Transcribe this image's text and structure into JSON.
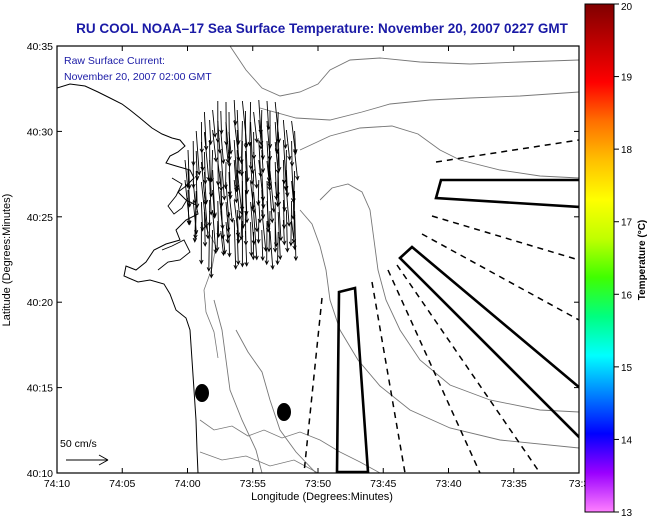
{
  "header": {
    "title": "RU COOL  NOAA–17  Sea Surface Temperature:  November 20, 2007 0227 GMT",
    "title_color": "#1a1aa6"
  },
  "overlay": {
    "line1": "Raw Surface Current:",
    "line2": "November 20, 2007 02:00 GMT",
    "text_color": "#1a1aa6"
  },
  "scale_vector": {
    "label": "50 cm/s"
  },
  "axes": {
    "xlabel": "Longitude (Degrees:Minutes)",
    "ylabel": "Latitude (Degrees:Minutes)",
    "x_ticks": [
      "74:10",
      "74:05",
      "74:00",
      "73:55",
      "73:50",
      "73:45",
      "73:40",
      "73:35",
      "73:3"
    ],
    "y_ticks": [
      "40:35",
      "40:30",
      "40:25",
      "40:20",
      "40:15",
      "40:10"
    ]
  },
  "colorbar": {
    "label": "Temperature (°C)",
    "ticks": [
      "20",
      "19",
      "18",
      "17",
      "16",
      "15",
      "14",
      "13"
    ],
    "gradient": [
      "#ff80ff",
      "#9a00ff",
      "#0000ff",
      "#0080ff",
      "#00ffff",
      "#00ff80",
      "#40ff00",
      "#c0ff00",
      "#ffff00",
      "#ffc000",
      "#ff7000",
      "#ff0000",
      "#c00000",
      "#800000"
    ]
  }
}
